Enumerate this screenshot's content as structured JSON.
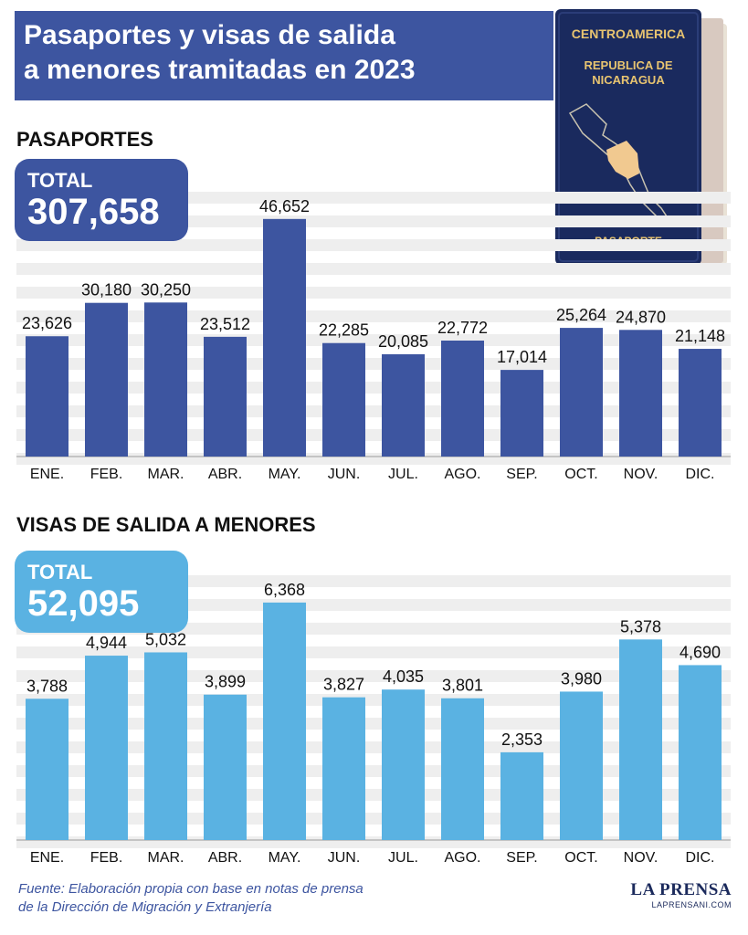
{
  "header": {
    "title_line1": "Pasaportes y visas de salida",
    "title_line2": "a menores tramitadas en 2023"
  },
  "passport_image": {
    "line1": "CENTROAMERICA",
    "line2": "REPUBLICA DE",
    "line3": "NICARAGUA",
    "bottom": "PASAPORTE"
  },
  "colors": {
    "header": "#3d55a0",
    "passports_bar": "#3d55a0",
    "visas_bar": "#5ab2e2",
    "stripe": "#eeeeee"
  },
  "sections": [
    {
      "title": "PASAPORTES",
      "total_label": "TOTAL",
      "total_value": "307,658"
    },
    {
      "title": "VISAS DE SALIDA A MENORES",
      "total_label": "TOTAL",
      "total_value": "52,095"
    }
  ],
  "chart_data": [
    {
      "type": "bar",
      "title": "PASAPORTES",
      "categories": [
        "ENE.",
        "FEB.",
        "MAR.",
        "ABR.",
        "MAY.",
        "JUN.",
        "JUL.",
        "AGO.",
        "SEP.",
        "OCT.",
        "NOV.",
        "DIC."
      ],
      "values": [
        23626,
        30180,
        30250,
        23512,
        46652,
        22285,
        20085,
        22772,
        17014,
        25264,
        24870,
        21148
      ],
      "value_labels": [
        "23,626",
        "30,180",
        "30,250",
        "23,512",
        "46,652",
        "22,285",
        "20,085",
        "22,772",
        "17,014",
        "25,264",
        "24,870",
        "21,148"
      ],
      "ylim": [
        0,
        52000
      ],
      "grid": "striped"
    },
    {
      "type": "bar",
      "title": "VISAS DE SALIDA A MENORES",
      "categories": [
        "ENE.",
        "FEB.",
        "MAR.",
        "ABR.",
        "MAY.",
        "JUN.",
        "JUL.",
        "AGO.",
        "SEP.",
        "OCT.",
        "NOV.",
        "DIC."
      ],
      "values": [
        3788,
        4944,
        5032,
        3899,
        6368,
        3827,
        4035,
        3801,
        2353,
        3980,
        5378,
        4690
      ],
      "value_labels": [
        "3,788",
        "4,944",
        "5,032",
        "3,899",
        "6,368",
        "3,827",
        "4,035",
        "3,801",
        "2,353",
        "3,980",
        "5,378",
        "4,690"
      ],
      "ylim": [
        0,
        7100
      ],
      "grid": "striped"
    }
  ],
  "footer": {
    "source_line1": "Fuente: Elaboración propia con base en notas de prensa",
    "source_line2": "de la Dirección de Migración y Extranjería",
    "logo_name": "LA PRENSA",
    "logo_url": "LAPRENSANI.COM"
  }
}
